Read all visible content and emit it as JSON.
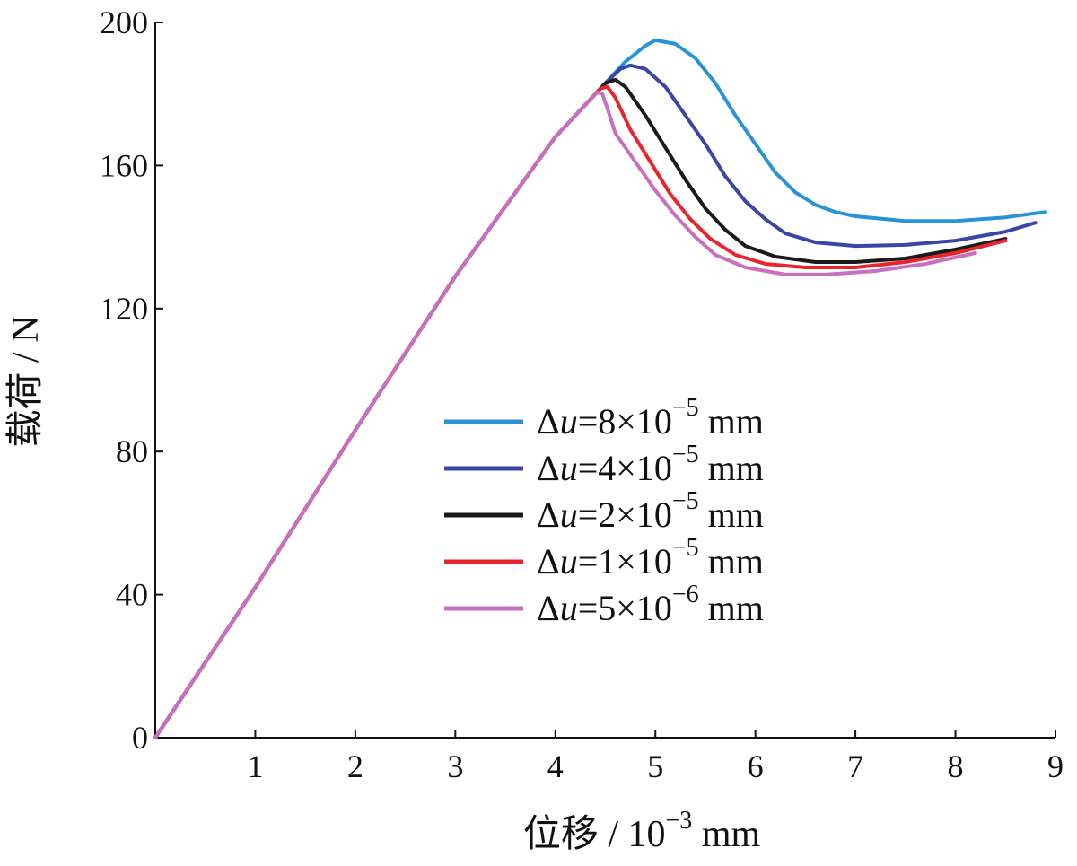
{
  "chart_data": {
    "type": "line",
    "title": "",
    "xlabel": "位移 / 10⁻³ mm",
    "xlabel_parts": {
      "main": "位移 / 10",
      "exp": "−3",
      "unit": " mm"
    },
    "ylabel": "载荷 / N",
    "xlim": [
      0,
      9
    ],
    "ylim": [
      0,
      200
    ],
    "x_ticks": [
      1,
      2,
      3,
      4,
      5,
      6,
      7,
      8,
      9
    ],
    "y_ticks": [
      0,
      40,
      80,
      120,
      160,
      200
    ],
    "grid": false,
    "legend_position": "center-right",
    "series": [
      {
        "name": "Δu=8×10⁻⁵ mm",
        "label_parts": {
          "delta": "Δ",
          "var": "u",
          "mid": "=8×10",
          "exp": "−5",
          "unit": " mm"
        },
        "color": "#2a93d5",
        "points": [
          [
            0,
            0
          ],
          [
            1,
            42
          ],
          [
            2,
            86
          ],
          [
            3,
            129
          ],
          [
            4,
            168
          ],
          [
            4.3,
            177
          ],
          [
            4.5,
            183
          ],
          [
            4.7,
            189
          ],
          [
            4.9,
            193.5
          ],
          [
            5.0,
            195
          ],
          [
            5.2,
            194
          ],
          [
            5.4,
            190
          ],
          [
            5.6,
            183
          ],
          [
            5.8,
            174
          ],
          [
            6.0,
            166
          ],
          [
            6.2,
            158
          ],
          [
            6.4,
            152.5
          ],
          [
            6.6,
            149
          ],
          [
            6.8,
            147
          ],
          [
            7.0,
            145.8
          ],
          [
            7.5,
            144.5
          ],
          [
            8.0,
            144.5
          ],
          [
            8.5,
            145.5
          ],
          [
            8.9,
            147
          ]
        ]
      },
      {
        "name": "Δu=4×10⁻⁵ mm",
        "label_parts": {
          "delta": "Δ",
          "var": "u",
          "mid": "=4×10",
          "exp": "−5",
          "unit": " mm"
        },
        "color": "#3a45a6",
        "points": [
          [
            0,
            0
          ],
          [
            1,
            42
          ],
          [
            2,
            86
          ],
          [
            3,
            129
          ],
          [
            4,
            168
          ],
          [
            4.3,
            177
          ],
          [
            4.5,
            183
          ],
          [
            4.65,
            187
          ],
          [
            4.75,
            188
          ],
          [
            4.9,
            187
          ],
          [
            5.1,
            182
          ],
          [
            5.3,
            174
          ],
          [
            5.5,
            166
          ],
          [
            5.7,
            157
          ],
          [
            5.9,
            150
          ],
          [
            6.1,
            145
          ],
          [
            6.3,
            141
          ],
          [
            6.6,
            138.5
          ],
          [
            7.0,
            137.5
          ],
          [
            7.5,
            137.8
          ],
          [
            8.0,
            139
          ],
          [
            8.5,
            141.5
          ],
          [
            8.8,
            144
          ]
        ]
      },
      {
        "name": "Δu=2×10⁻⁵ mm",
        "label_parts": {
          "delta": "Δ",
          "var": "u",
          "mid": "=2×10",
          "exp": "−5",
          "unit": " mm"
        },
        "color": "#1a1a1a",
        "points": [
          [
            0,
            0
          ],
          [
            1,
            42
          ],
          [
            2,
            86
          ],
          [
            3,
            129
          ],
          [
            4,
            168
          ],
          [
            4.3,
            177
          ],
          [
            4.5,
            183
          ],
          [
            4.6,
            184
          ],
          [
            4.7,
            182
          ],
          [
            4.9,
            174
          ],
          [
            5.1,
            165
          ],
          [
            5.3,
            156
          ],
          [
            5.5,
            148
          ],
          [
            5.7,
            142
          ],
          [
            5.9,
            137.5
          ],
          [
            6.2,
            134.5
          ],
          [
            6.6,
            133
          ],
          [
            7.0,
            133
          ],
          [
            7.5,
            134
          ],
          [
            8.0,
            136.5
          ],
          [
            8.5,
            139.5
          ]
        ]
      },
      {
        "name": "Δu=1×10⁻⁵ mm",
        "label_parts": {
          "delta": "Δ",
          "var": "u",
          "mid": "=1×10",
          "exp": "−5",
          "unit": " mm"
        },
        "color": "#e8242c",
        "points": [
          [
            0,
            0
          ],
          [
            1,
            42
          ],
          [
            2,
            86
          ],
          [
            3,
            129
          ],
          [
            4,
            168
          ],
          [
            4.3,
            177
          ],
          [
            4.45,
            181.5
          ],
          [
            4.52,
            182
          ],
          [
            4.6,
            179
          ],
          [
            4.75,
            170
          ],
          [
            4.95,
            161
          ],
          [
            5.15,
            152
          ],
          [
            5.35,
            145
          ],
          [
            5.55,
            139.5
          ],
          [
            5.8,
            135
          ],
          [
            6.1,
            132.5
          ],
          [
            6.5,
            131.5
          ],
          [
            7.0,
            131.5
          ],
          [
            7.5,
            133
          ],
          [
            8.0,
            135.5
          ],
          [
            8.5,
            139
          ]
        ]
      },
      {
        "name": "Δu=5×10⁻⁶ mm",
        "label_parts": {
          "delta": "Δ",
          "var": "u",
          "mid": "=5×10",
          "exp": "−6",
          "unit": " mm"
        },
        "color": "#c86fc0",
        "points": [
          [
            0,
            0
          ],
          [
            1,
            42
          ],
          [
            2,
            86
          ],
          [
            3,
            129
          ],
          [
            4,
            168
          ],
          [
            4.3,
            177
          ],
          [
            4.42,
            180.5
          ],
          [
            4.47,
            180
          ],
          [
            4.52,
            176
          ],
          [
            4.6,
            169
          ],
          [
            4.8,
            161
          ],
          [
            5.0,
            153
          ],
          [
            5.2,
            146
          ],
          [
            5.4,
            140
          ],
          [
            5.6,
            135
          ],
          [
            5.9,
            131.5
          ],
          [
            6.3,
            129.5
          ],
          [
            6.7,
            129.5
          ],
          [
            7.2,
            130.5
          ],
          [
            7.7,
            132.5
          ],
          [
            8.2,
            135.5
          ]
        ]
      }
    ]
  }
}
